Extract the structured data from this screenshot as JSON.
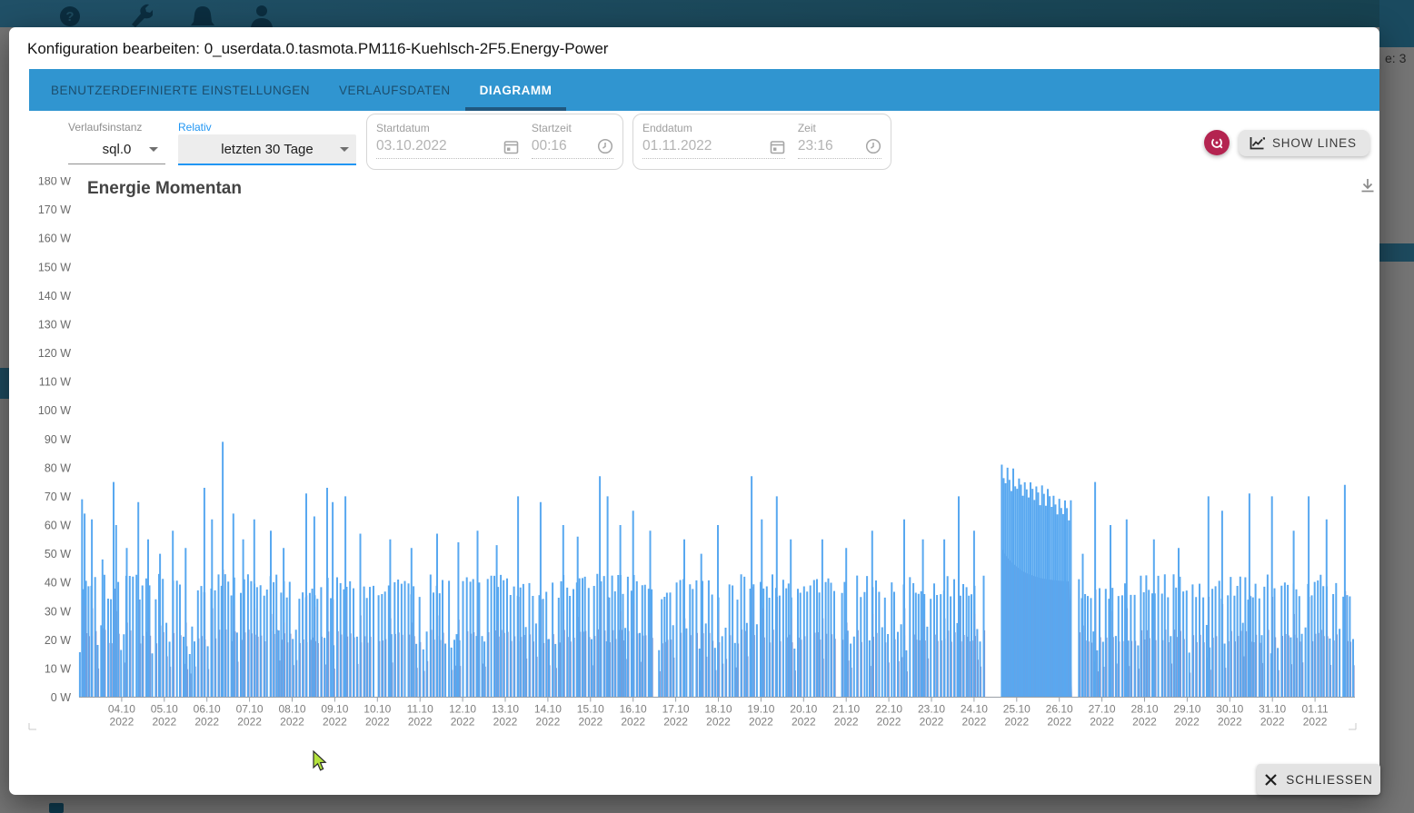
{
  "background": {
    "fragment_text": "e: 3"
  },
  "dialog": {
    "title": "Konfiguration bearbeiten: 0_userdata.0.tasmota.PM116-Kuehlsch-2F5.Energy-Power",
    "tabs": [
      {
        "label": "BENUTZERDEFINIERTE EINSTELLUNGEN",
        "active": false
      },
      {
        "label": "VERLAUFSDATEN",
        "active": false
      },
      {
        "label": "DIAGRAMM",
        "active": true
      }
    ],
    "controls": {
      "instance": {
        "label": "Verlaufsinstanz",
        "value": "sql.0"
      },
      "relative": {
        "label": "Relativ",
        "value": "letzten 30 Tage"
      },
      "start": {
        "date_label": "Startdatum",
        "date_value": "03.10.2022",
        "time_label": "Startzeit",
        "time_value": "00:16"
      },
      "end": {
        "date_label": "Enddatum",
        "date_value": "01.11.2022",
        "time_label": "Zeit",
        "time_value": "23:16"
      }
    },
    "buttons": {
      "show_lines": "SHOW LINES",
      "close": "SCHLIESSEN"
    }
  },
  "chart_data": {
    "type": "line",
    "title": "Energie Momentan",
    "unit": "W",
    "ylim": [
      0,
      180
    ],
    "grid": false,
    "legend": false,
    "y_ticks": [
      "0 W",
      "10 W",
      "20 W",
      "30 W",
      "40 W",
      "50 W",
      "60 W",
      "70 W",
      "80 W",
      "90 W",
      "100 W",
      "110 W",
      "120 W",
      "130 W",
      "140 W",
      "150 W",
      "160 W",
      "170 W",
      "180 W"
    ],
    "x_range": [
      "03.10.2022 00:16",
      "01.11.2022 23:16"
    ],
    "x_tick_labels": [
      "04.10",
      "05.10",
      "06.10",
      "07.10",
      "08.10",
      "09.10",
      "10.10",
      "11.10",
      "12.10",
      "13.10",
      "14.10",
      "15.10",
      "16.10",
      "17.10",
      "18.10",
      "19.10",
      "20.10",
      "21.10",
      "22.10",
      "23.10",
      "24.10",
      "25.10",
      "26.10",
      "27.10",
      "28.10",
      "29.10",
      "30.10",
      "31.10",
      "01.11"
    ],
    "x_tick_year": "2022",
    "series": [
      {
        "name": "0_userdata.0.tasmota.PM116-Kuehlsch-2F5.Energy-Power",
        "line_color": "#58a8f0",
        "fill_color": "#9093c8",
        "base_cycle": {
          "high_min": 34,
          "high_max": 43,
          "low_min": 15,
          "low_max": 26,
          "avg_spacing_days": 0.072,
          "fill_ratio": 0.55
        },
        "peaks_day_watts": [
          [
            0.07,
            69
          ],
          [
            0.13,
            64
          ],
          [
            0.3,
            62
          ],
          [
            0.55,
            48
          ],
          [
            0.81,
            75
          ],
          [
            0.87,
            60
          ],
          [
            1.12,
            52
          ],
          [
            1.39,
            68
          ],
          [
            1.62,
            55
          ],
          [
            1.9,
            50
          ],
          [
            2.2,
            58
          ],
          [
            2.5,
            52
          ],
          [
            2.94,
            73
          ],
          [
            3.12,
            62
          ],
          [
            3.37,
            89
          ],
          [
            3.62,
            64
          ],
          [
            3.85,
            55
          ],
          [
            4.11,
            62
          ],
          [
            4.5,
            58
          ],
          [
            4.8,
            52
          ],
          [
            5.33,
            71
          ],
          [
            5.52,
            63
          ],
          [
            5.82,
            73
          ],
          [
            5.95,
            68
          ],
          [
            6.25,
            70
          ],
          [
            6.6,
            57
          ],
          [
            7.3,
            55
          ],
          [
            7.8,
            52
          ],
          [
            8.4,
            57
          ],
          [
            8.9,
            54
          ],
          [
            9.35,
            58
          ],
          [
            9.8,
            53
          ],
          [
            10.3,
            70
          ],
          [
            10.83,
            68
          ],
          [
            11.36,
            60
          ],
          [
            11.7,
            56
          ],
          [
            12.22,
            77
          ],
          [
            12.4,
            70
          ],
          [
            12.7,
            60
          ],
          [
            13.0,
            65
          ],
          [
            13.4,
            58
          ],
          [
            14.2,
            55
          ],
          [
            14.6,
            50
          ],
          [
            14.99,
            60
          ],
          [
            15.78,
            77
          ],
          [
            16.02,
            62
          ],
          [
            16.37,
            70
          ],
          [
            16.7,
            55
          ],
          [
            17.44,
            55
          ],
          [
            18.0,
            52
          ],
          [
            18.61,
            58
          ],
          [
            19.36,
            62
          ],
          [
            19.8,
            55
          ],
          [
            20.3,
            55
          ],
          [
            20.64,
            70
          ],
          [
            21.0,
            58
          ],
          [
            23.55,
            50
          ],
          [
            23.84,
            75
          ],
          [
            24.2,
            60
          ],
          [
            24.58,
            62
          ],
          [
            25.22,
            55
          ],
          [
            25.8,
            52
          ],
          [
            26.5,
            70
          ],
          [
            26.82,
            65
          ],
          [
            27.46,
            71
          ],
          [
            27.99,
            70
          ],
          [
            28.5,
            58
          ],
          [
            28.85,
            70
          ],
          [
            29.27,
            62
          ],
          [
            29.7,
            74
          ]
        ],
        "sustained_block": {
          "start_day": 21.64,
          "end_day": 23.3,
          "fill_start_w": 52,
          "fill_end_w": 40,
          "spike_start_w": 79,
          "spike_end_w": 66,
          "spike_spacing_days": 0.045
        },
        "quiet_gaps_days": [
          [
            6.93,
            7.02
          ],
          [
            13.48,
            13.6
          ],
          [
            17.78,
            17.88
          ],
          [
            21.3,
            21.64
          ],
          [
            23.3,
            23.44
          ]
        ]
      }
    ]
  }
}
